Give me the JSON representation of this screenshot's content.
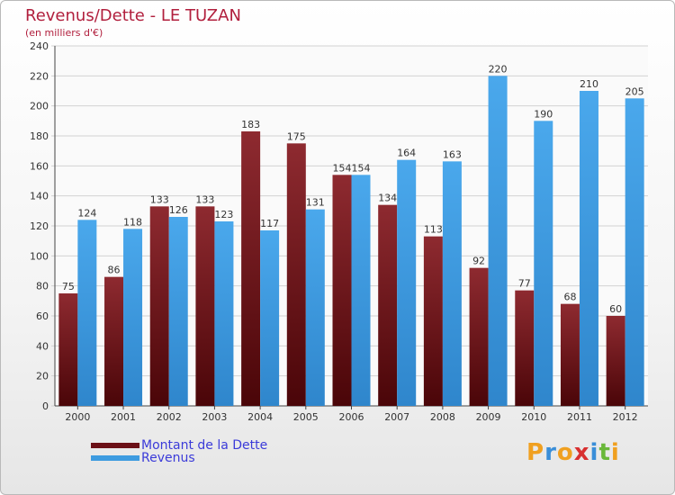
{
  "chart_data": {
    "type": "bar",
    "title": "Revenus/Dette - LE TUZAN",
    "subtitle": "(en milliers d'€)",
    "xlabel": "",
    "ylabel": "",
    "ylim": [
      0,
      240
    ],
    "yticks": [
      0,
      20,
      40,
      60,
      80,
      100,
      120,
      140,
      160,
      180,
      200,
      220,
      240
    ],
    "grid": true,
    "categories": [
      "2000",
      "2001",
      "2002",
      "2003",
      "2004",
      "2005",
      "2006",
      "2007",
      "2008",
      "2009",
      "2010",
      "2011",
      "2012"
    ],
    "series": [
      {
        "name": "Montant de la Dette",
        "color": "#6b1016",
        "values": [
          75,
          86,
          133,
          133,
          183,
          175,
          154,
          134,
          113,
          92,
          77,
          68,
          60
        ]
      },
      {
        "name": "Revenus",
        "color": "#3d9be0",
        "values": [
          124,
          118,
          126,
          123,
          117,
          131,
          154,
          164,
          163,
          220,
          190,
          210,
          205
        ]
      }
    ],
    "legend_position": "bottom-left"
  },
  "legend": {
    "debt_label": "Montant de la Dette",
    "revenue_label": "Revenus"
  },
  "logo": {
    "letters": [
      "P",
      "r",
      "o",
      "x",
      "i",
      "t",
      "i"
    ],
    "colors": [
      "#f0a020",
      "#3a8ed8",
      "#f0a020",
      "#d83030",
      "#3a8ed8",
      "#6ab83a",
      "#f0a020"
    ]
  }
}
